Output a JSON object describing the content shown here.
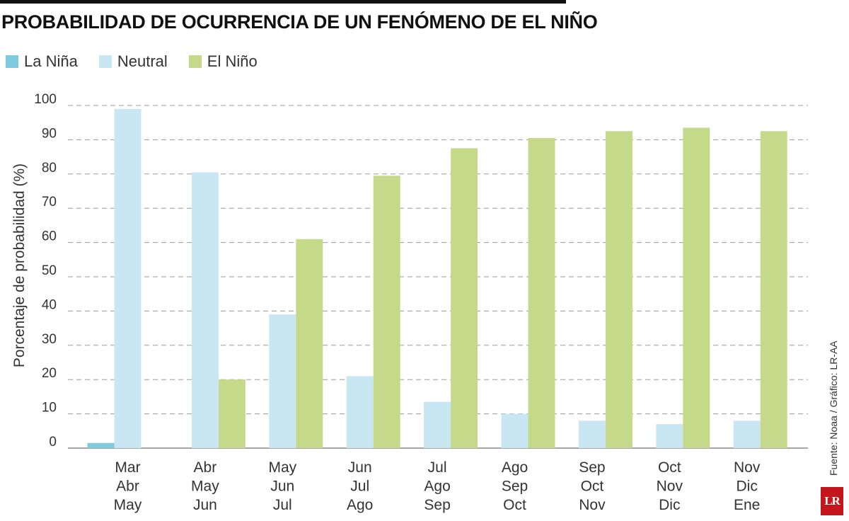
{
  "title": "PROBABILIDAD DE OCURRENCIA DE UN FENÓMENO DE EL NIÑO",
  "source": "Fuente: Noaa / Gráfico: LR-AA",
  "logo_text": "LR",
  "colors": {
    "la_nina": "#7ecbe0",
    "neutral": "#c9e7f2",
    "el_nino": "#c4d98a"
  },
  "chart_data": {
    "type": "bar",
    "title": "PROBABILIDAD DE OCURRENCIA DE UN FENÓMENO DE EL NIÑO",
    "ylabel": "Porcentaje de probabilidad (%)",
    "xlabel": "",
    "ylim": [
      0,
      100
    ],
    "yticks": [
      0,
      10,
      20,
      30,
      40,
      50,
      60,
      70,
      80,
      90,
      100
    ],
    "grid": true,
    "legend_position": "top-left",
    "categories": [
      [
        "Mar",
        "Abr",
        "May"
      ],
      [
        "Abr",
        "May",
        "Jun"
      ],
      [
        "May",
        "Jun",
        "Jul"
      ],
      [
        "Jun",
        "Jul",
        "Ago"
      ],
      [
        "Jul",
        "Ago",
        "Sep"
      ],
      [
        "Ago",
        "Sep",
        "Oct"
      ],
      [
        "Sep",
        "Oct",
        "Nov"
      ],
      [
        "Oct",
        "Nov",
        "Dic"
      ],
      [
        "Nov",
        "Dic",
        "Ene"
      ]
    ],
    "series": [
      {
        "name": "La Niña",
        "color": "#7ecbe0",
        "values": [
          1.5,
          0,
          0,
          0,
          0,
          0,
          0,
          0,
          0
        ]
      },
      {
        "name": "Neutral",
        "color": "#c9e7f2",
        "values": [
          99,
          80.5,
          39,
          21,
          13.5,
          10,
          8,
          7,
          8
        ]
      },
      {
        "name": "El Niño",
        "color": "#c4d98a",
        "values": [
          0,
          20,
          61,
          79.5,
          87.5,
          90.5,
          92.5,
          93.5,
          92.5
        ]
      }
    ]
  }
}
